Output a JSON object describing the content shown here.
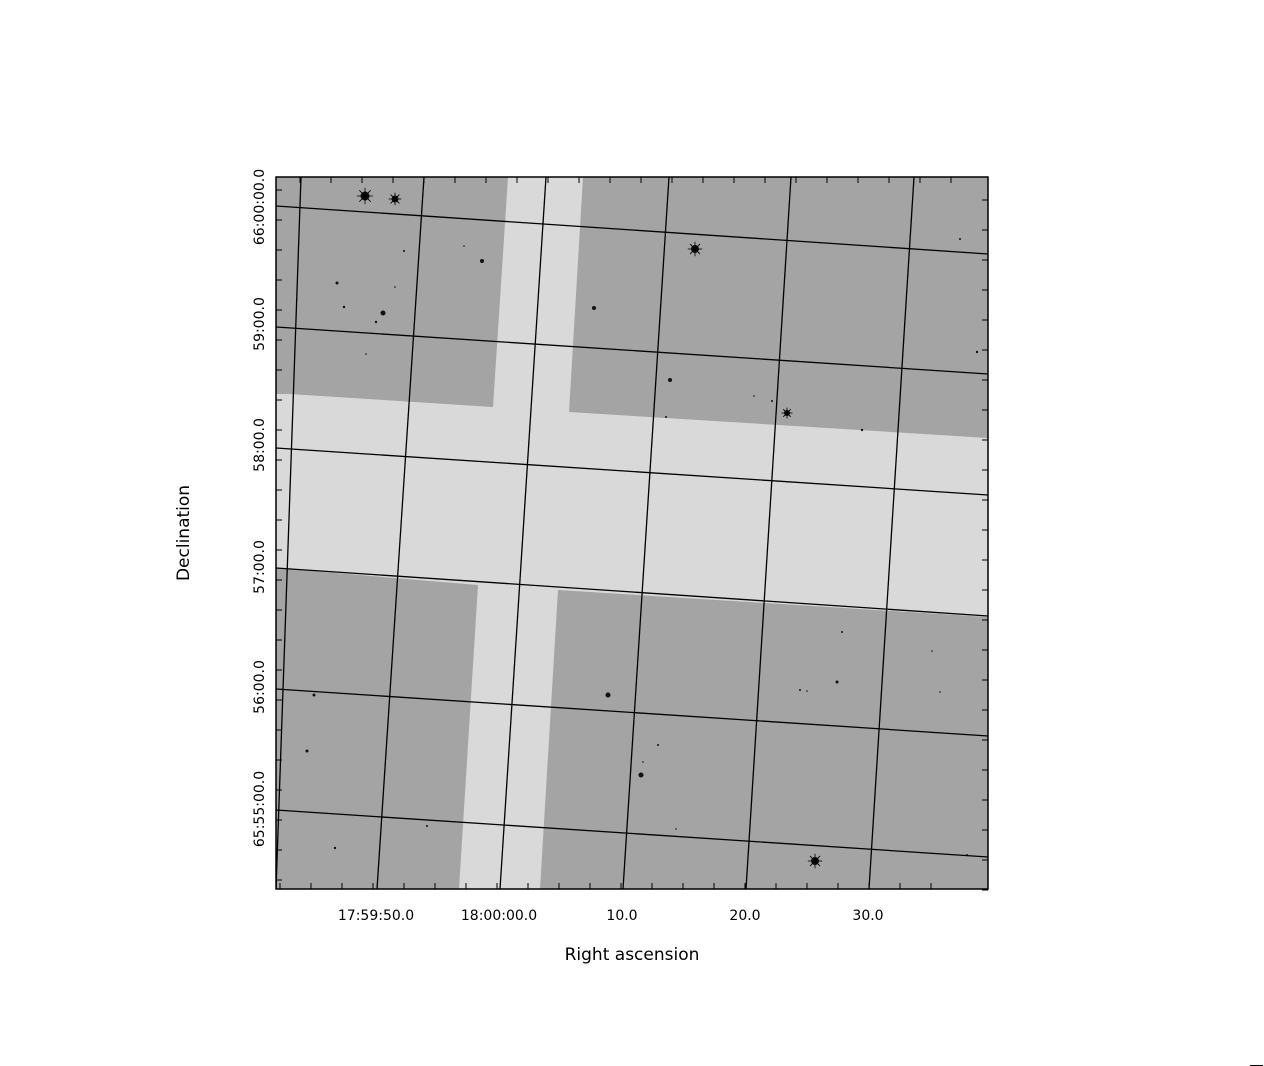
{
  "chart_data": {
    "type": "sky-image",
    "xlabel": "Right ascension",
    "ylabel": "Declination",
    "x_ticks": [
      "17:59:50.0",
      "18:00:00.0",
      "10.0",
      "20.0",
      "30.0"
    ],
    "y_ticks": [
      "66:00:00.0",
      "59:00.0",
      "58:00.0",
      "57:00.0",
      "56:00.0",
      "65:55:00.0"
    ],
    "grid": true,
    "colors": {
      "detector": "#a4a4a4",
      "gap": "#d9d9d9",
      "grid": "#000000",
      "stars": "#111111",
      "background": "#ffffff"
    }
  }
}
